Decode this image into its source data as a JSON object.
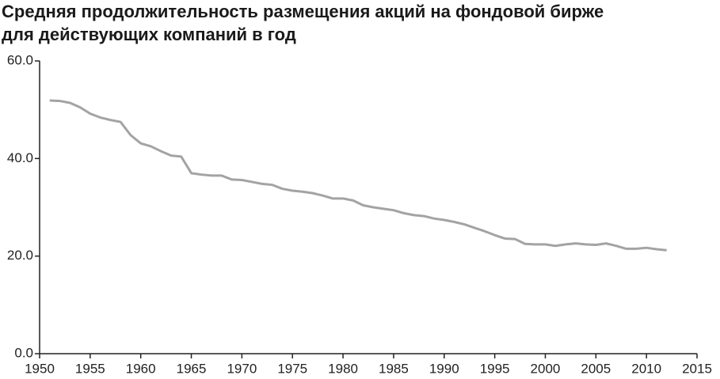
{
  "chart_data": {
    "type": "line",
    "title": "Средняя продолжительность размещения акций на фондовой бирже для действующих компаний в год",
    "x": [
      1951,
      1952,
      1953,
      1954,
      1955,
      1956,
      1957,
      1958,
      1959,
      1960,
      1961,
      1962,
      1963,
      1964,
      1965,
      1966,
      1967,
      1968,
      1969,
      1970,
      1971,
      1972,
      1973,
      1974,
      1975,
      1976,
      1977,
      1978,
      1979,
      1980,
      1981,
      1982,
      1983,
      1984,
      1985,
      1986,
      1987,
      1988,
      1989,
      1990,
      1991,
      1992,
      1993,
      1994,
      1995,
      1996,
      1997,
      1998,
      1999,
      2000,
      2001,
      2002,
      2003,
      2004,
      2005,
      2006,
      2007,
      2008,
      2009,
      2010,
      2011,
      2012
    ],
    "values": [
      51.9,
      51.8,
      51.4,
      50.5,
      49.2,
      48.4,
      47.9,
      47.5,
      44.8,
      43.1,
      42.5,
      41.5,
      40.6,
      40.4,
      37.0,
      36.7,
      36.5,
      36.5,
      35.7,
      35.6,
      35.2,
      34.8,
      34.6,
      33.8,
      33.4,
      33.2,
      32.9,
      32.4,
      31.8,
      31.8,
      31.4,
      30.4,
      30.0,
      29.7,
      29.4,
      28.8,
      28.4,
      28.2,
      27.7,
      27.4,
      27.0,
      26.5,
      25.8,
      25.1,
      24.3,
      23.6,
      23.5,
      22.5,
      22.4,
      22.4,
      22.1,
      22.4,
      22.6,
      22.4,
      22.3,
      22.6,
      22.1,
      21.5,
      21.5,
      21.7,
      21.4,
      21.2
    ],
    "color": "#a3a3a3",
    "xlim": [
      1950,
      2015
    ],
    "xticks": [
      1950,
      1955,
      1960,
      1965,
      1970,
      1975,
      1980,
      1985,
      1990,
      1995,
      2000,
      2005,
      2010,
      2015
    ],
    "ylim": [
      0,
      60
    ],
    "yticks": [
      {
        "value": 0,
        "label": "0.0"
      },
      {
        "value": 20,
        "label": "20.0"
      },
      {
        "value": 40,
        "label": "40.0"
      },
      {
        "value": 60,
        "label": "60.0"
      }
    ]
  }
}
